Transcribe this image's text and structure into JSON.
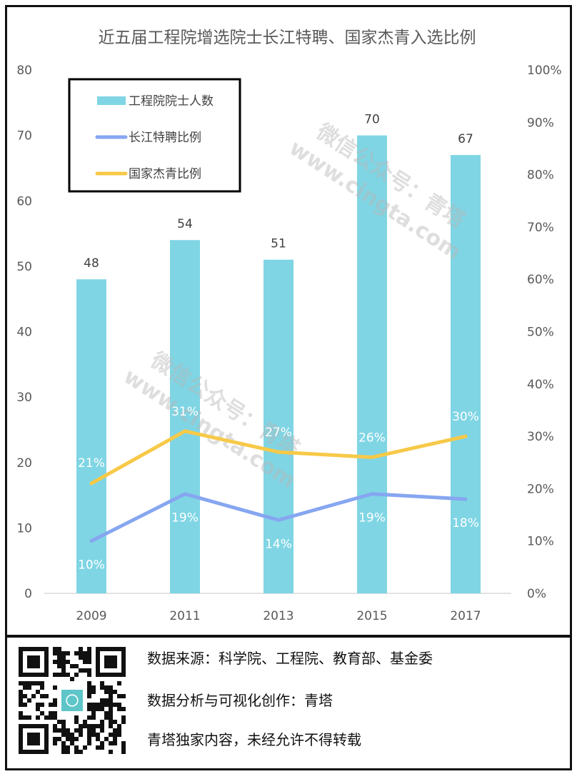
{
  "chart_data": {
    "type": "bar",
    "title": "近五届工程院增选院士长江特聘、国家杰青入选比例",
    "categories": [
      "2009",
      "2011",
      "2013",
      "2015",
      "2017"
    ],
    "left_axis": {
      "ylim": [
        0,
        80
      ],
      "ticks": [
        "0",
        "10",
        "20",
        "30",
        "40",
        "50",
        "60",
        "70",
        "80"
      ]
    },
    "right_axis": {
      "ylim": [
        0,
        100
      ],
      "ticks": [
        "0%",
        "10%",
        "20%",
        "30%",
        "40%",
        "50%",
        "60%",
        "70%",
        "80%",
        "90%",
        "100%"
      ]
    },
    "series": [
      {
        "name": "工程院院士人数",
        "type": "bar",
        "axis": "left",
        "color": "#7fd5e4",
        "values": [
          48,
          54,
          51,
          70,
          67
        ],
        "labels": [
          "48",
          "54",
          "51",
          "70",
          "67"
        ]
      },
      {
        "name": "长江特聘比例",
        "type": "line",
        "axis": "right",
        "color": "#86a6f0",
        "values": [
          10,
          19,
          14,
          19,
          18
        ],
        "labels": [
          "10%",
          "19%",
          "14%",
          "19%",
          "18%"
        ]
      },
      {
        "name": "国家杰青比例",
        "type": "line",
        "axis": "right",
        "color": "#f7c948",
        "values": [
          21,
          31,
          27,
          26,
          30
        ],
        "labels": [
          "21%",
          "31%",
          "27%",
          "26%",
          "30%"
        ]
      }
    ],
    "legend_position": "top-left",
    "grid": false
  },
  "watermark": {
    "line1": "微信公众号：青塔",
    "line2": "www.cingta.com"
  },
  "footer": {
    "source": "数据来源：科学院、工程院、教育部、基金委",
    "credit": "数据分析与可视化创作：青塔",
    "copyright": "青塔独家内容，未经允许不得转载"
  }
}
